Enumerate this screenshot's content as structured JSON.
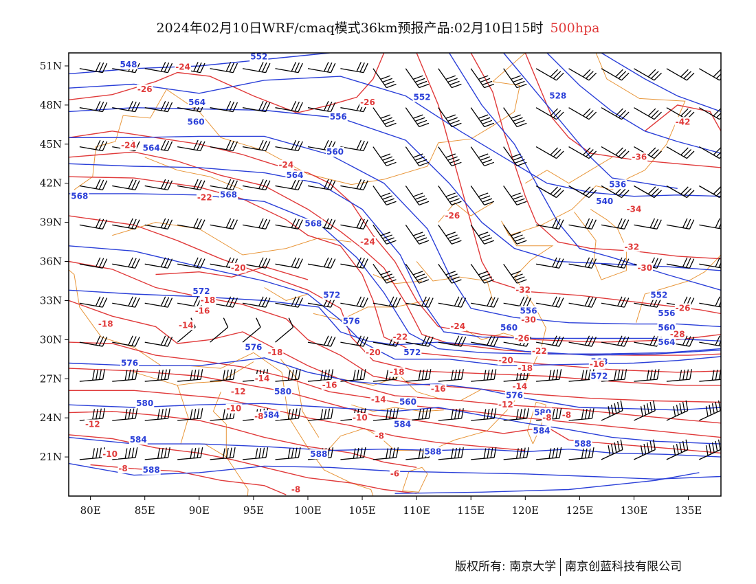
{
  "title": {
    "main": "2024年02月10日WRF/cmaq模式36km预报产品:02月10日15时",
    "level": "500hpa"
  },
  "colors": {
    "height_contour": "#2a3fd8",
    "temperature_contour": "#e03a3a",
    "boundary": "#e8963a",
    "wind_barb": "#000000",
    "level_text": "#e03a3a"
  },
  "axes": {
    "lon_labels": [
      "80E",
      "85E",
      "90E",
      "95E",
      "100E",
      "105E",
      "110E",
      "115E",
      "120E",
      "125E",
      "130E",
      "135E"
    ],
    "lat_labels": [
      "51N",
      "48N",
      "45N",
      "42N",
      "39N",
      "36N",
      "33N",
      "30N",
      "27N",
      "24N",
      "21N"
    ],
    "lon_range": [
      78,
      138
    ],
    "lat_range": [
      18,
      52
    ]
  },
  "height_labels": [
    {
      "text": "548",
      "lon": 83.5,
      "lat": 50.9
    },
    {
      "text": "552",
      "lon": 95.5,
      "lat": 51.5
    },
    {
      "text": "552",
      "lon": 110.5,
      "lat": 48.4
    },
    {
      "text": "528",
      "lon": 123.0,
      "lat": 48.5
    },
    {
      "text": "564",
      "lon": 89.8,
      "lat": 48.0
    },
    {
      "text": "560",
      "lon": 89.7,
      "lat": 46.5
    },
    {
      "text": "556",
      "lon": 102.8,
      "lat": 46.9
    },
    {
      "text": "564",
      "lon": 85.6,
      "lat": 44.5
    },
    {
      "text": "560",
      "lon": 102.5,
      "lat": 44.2
    },
    {
      "text": "564",
      "lon": 98.8,
      "lat": 42.4
    },
    {
      "text": "536",
      "lon": 128.5,
      "lat": 41.7
    },
    {
      "text": "568",
      "lon": 79.0,
      "lat": 40.8
    },
    {
      "text": "568",
      "lon": 92.7,
      "lat": 40.9
    },
    {
      "text": "540",
      "lon": 127.3,
      "lat": 40.4
    },
    {
      "text": "568",
      "lon": 100.5,
      "lat": 38.7
    },
    {
      "text": "572",
      "lon": 90.2,
      "lat": 33.5
    },
    {
      "text": "572",
      "lon": 102.2,
      "lat": 33.2
    },
    {
      "text": "552",
      "lon": 132.3,
      "lat": 33.2
    },
    {
      "text": "556",
      "lon": 120.3,
      "lat": 32.0
    },
    {
      "text": "556",
      "lon": 133.0,
      "lat": 31.8
    },
    {
      "text": "576",
      "lon": 104.0,
      "lat": 31.2
    },
    {
      "text": "560",
      "lon": 118.5,
      "lat": 30.7
    },
    {
      "text": "560",
      "lon": 133.0,
      "lat": 30.7
    },
    {
      "text": "564",
      "lon": 133.0,
      "lat": 29.6
    },
    {
      "text": "576",
      "lon": 95.0,
      "lat": 29.2
    },
    {
      "text": "572",
      "lon": 109.6,
      "lat": 28.8
    },
    {
      "text": "576",
      "lon": 83.6,
      "lat": 28.0
    },
    {
      "text": "568",
      "lon": 126.8,
      "lat": 28.1
    },
    {
      "text": "572",
      "lon": 126.8,
      "lat": 27.0
    },
    {
      "text": "580",
      "lon": 97.7,
      "lat": 25.8
    },
    {
      "text": "576",
      "lon": 119.0,
      "lat": 25.5
    },
    {
      "text": "580",
      "lon": 85.0,
      "lat": 24.9
    },
    {
      "text": "560",
      "lon": 109.2,
      "lat": 25.0
    },
    {
      "text": "584",
      "lon": 96.6,
      "lat": 24.0
    },
    {
      "text": "580",
      "lon": 121.6,
      "lat": 24.2
    },
    {
      "text": "584",
      "lon": 108.7,
      "lat": 23.3
    },
    {
      "text": "584",
      "lon": 121.5,
      "lat": 22.8
    },
    {
      "text": "584",
      "lon": 84.4,
      "lat": 22.1
    },
    {
      "text": "588",
      "lon": 125.3,
      "lat": 21.8
    },
    {
      "text": "588",
      "lon": 101.0,
      "lat": 21.0
    },
    {
      "text": "588",
      "lon": 111.5,
      "lat": 21.2
    },
    {
      "text": "588",
      "lon": 85.6,
      "lat": 19.8
    }
  ],
  "temperature_labels": [
    {
      "text": "-24",
      "lon": 88.5,
      "lat": 50.7
    },
    {
      "text": "-26",
      "lon": 85.0,
      "lat": 49.0
    },
    {
      "text": "-26",
      "lon": 105.5,
      "lat": 48.0
    },
    {
      "text": "-42",
      "lon": 134.5,
      "lat": 46.5
    },
    {
      "text": "-24",
      "lon": 83.5,
      "lat": 44.7
    },
    {
      "text": "-36",
      "lon": 130.5,
      "lat": 43.8
    },
    {
      "text": "-24",
      "lon": 98.0,
      "lat": 43.2
    },
    {
      "text": "-22",
      "lon": 90.5,
      "lat": 40.7
    },
    {
      "text": "-34",
      "lon": 130.0,
      "lat": 39.8
    },
    {
      "text": "-26",
      "lon": 113.3,
      "lat": 39.3
    },
    {
      "text": "-24",
      "lon": 105.5,
      "lat": 37.3
    },
    {
      "text": "-32",
      "lon": 129.8,
      "lat": 36.9
    },
    {
      "text": "-20",
      "lon": 93.6,
      "lat": 35.3
    },
    {
      "text": "-30",
      "lon": 131.0,
      "lat": 35.3
    },
    {
      "text": "-32",
      "lon": 119.8,
      "lat": 33.6
    },
    {
      "text": "-18",
      "lon": 90.8,
      "lat": 32.8
    },
    {
      "text": "-26",
      "lon": 134.5,
      "lat": 32.2
    },
    {
      "text": "-16",
      "lon": 90.3,
      "lat": 32.0
    },
    {
      "text": "-30",
      "lon": 120.3,
      "lat": 31.3
    },
    {
      "text": "-18",
      "lon": 81.4,
      "lat": 31.0
    },
    {
      "text": "-14",
      "lon": 88.8,
      "lat": 30.9
    },
    {
      "text": "-24",
      "lon": 113.8,
      "lat": 30.8
    },
    {
      "text": "-28",
      "lon": 134.0,
      "lat": 30.2
    },
    {
      "text": "-22",
      "lon": 108.5,
      "lat": 30.0
    },
    {
      "text": "-26",
      "lon": 119.7,
      "lat": 29.9
    },
    {
      "text": "-18",
      "lon": 97.0,
      "lat": 28.8
    },
    {
      "text": "-20",
      "lon": 106.0,
      "lat": 28.8
    },
    {
      "text": "-22",
      "lon": 121.3,
      "lat": 28.9
    },
    {
      "text": "-20",
      "lon": 118.2,
      "lat": 28.2
    },
    {
      "text": "-16",
      "lon": 126.6,
      "lat": 27.9
    },
    {
      "text": "-18",
      "lon": 120.0,
      "lat": 27.6
    },
    {
      "text": "-18",
      "lon": 108.2,
      "lat": 27.3
    },
    {
      "text": "-14",
      "lon": 95.8,
      "lat": 26.8
    },
    {
      "text": "-16",
      "lon": 102.0,
      "lat": 26.3
    },
    {
      "text": "-16",
      "lon": 112.0,
      "lat": 26.0
    },
    {
      "text": "-14",
      "lon": 119.5,
      "lat": 26.2
    },
    {
      "text": "-12",
      "lon": 93.6,
      "lat": 25.8
    },
    {
      "text": "-14",
      "lon": 106.5,
      "lat": 25.2
    },
    {
      "text": "-12",
      "lon": 118.2,
      "lat": 24.8
    },
    {
      "text": "-10",
      "lon": 93.2,
      "lat": 24.5
    },
    {
      "text": "-8",
      "lon": 95.5,
      "lat": 23.9
    },
    {
      "text": "-10",
      "lon": 104.8,
      "lat": 23.8
    },
    {
      "text": "-8",
      "lon": 122.0,
      "lat": 23.8
    },
    {
      "text": "-8",
      "lon": 123.8,
      "lat": 24.0
    },
    {
      "text": "-12",
      "lon": 80.2,
      "lat": 23.3
    },
    {
      "text": "-8",
      "lon": 106.6,
      "lat": 22.4
    },
    {
      "text": "-10",
      "lon": 81.8,
      "lat": 21.0
    },
    {
      "text": "-8",
      "lon": 83.0,
      "lat": 19.9
    },
    {
      "text": "-6",
      "lon": 108.0,
      "lat": 19.5
    },
    {
      "text": "-8",
      "lon": 98.9,
      "lat": 18.3
    }
  ],
  "footer": {
    "owner_prefix": "版权所有: 南京大学",
    "owner_company": "南京创蓝科技有限公司"
  }
}
